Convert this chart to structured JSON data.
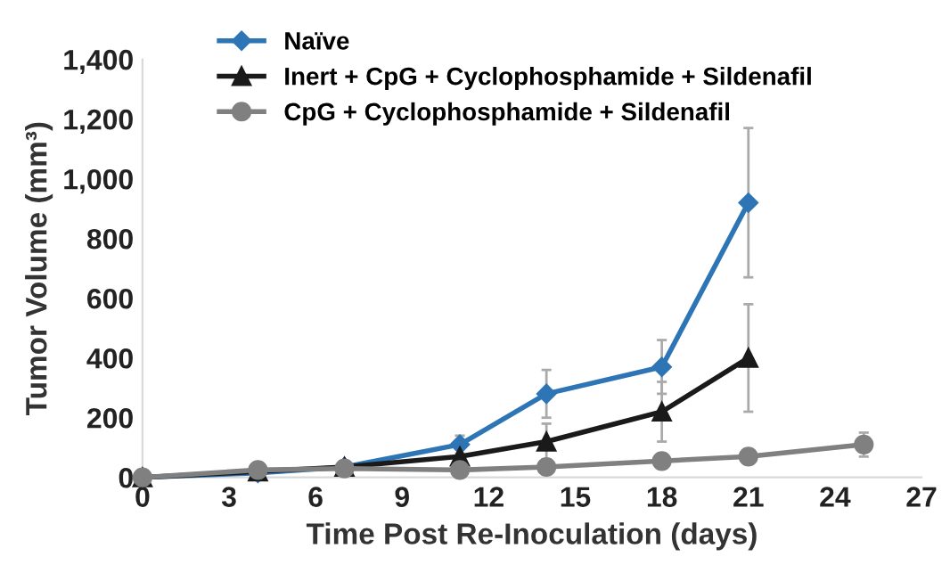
{
  "chart_data": {
    "type": "line",
    "xlabel": "Time Post Re-Inoculation (days)",
    "ylabel": "Tumor Volume (mm³)",
    "xlim": [
      0,
      27
    ],
    "xticks": [
      0,
      3,
      6,
      9,
      12,
      15,
      18,
      21,
      24,
      27
    ],
    "ylim": [
      0,
      1400
    ],
    "yticks": [
      0,
      {
        "value": 200,
        "label": "200"
      },
      {
        "value": 400,
        "label": "400"
      },
      {
        "value": 600,
        "label": "600"
      },
      {
        "value": 800,
        "label": "800"
      },
      {
        "value": 1000,
        "label": "1,000"
      },
      {
        "value": 1200,
        "label": "1,200"
      },
      {
        "value": 1400,
        "label": "1,400"
      }
    ],
    "grid": false,
    "legend": "top left",
    "line_style": "solid",
    "series": [
      {
        "name": "Naïve",
        "color": "#2e75b6",
        "marker": "diamond",
        "x": [
          0,
          4,
          7,
          11,
          14,
          18,
          21
        ],
        "values": [
          0,
          15,
          35,
          110,
          280,
          370,
          920
        ],
        "errors": [
          null,
          null,
          null,
          30,
          80,
          90,
          250
        ]
      },
      {
        "name": "Inert + CpG + Cyclophosphamide + Sildenafil",
        "color": "#1a1a1a",
        "marker": "triangle",
        "x": [
          0,
          4,
          7,
          11,
          14,
          18,
          21
        ],
        "values": [
          0,
          20,
          35,
          70,
          120,
          220,
          400
        ],
        "errors": [
          null,
          null,
          null,
          null,
          60,
          100,
          180
        ]
      },
      {
        "name": "CpG + Cyclophosphamide + Sildenafil",
        "color": "#808080",
        "marker": "circle",
        "x": [
          0,
          4,
          7,
          11,
          14,
          18,
          21,
          25
        ],
        "values": [
          0,
          25,
          30,
          25,
          35,
          55,
          70,
          110
        ],
        "errors": [
          null,
          null,
          null,
          null,
          null,
          null,
          null,
          40
        ]
      }
    ]
  }
}
